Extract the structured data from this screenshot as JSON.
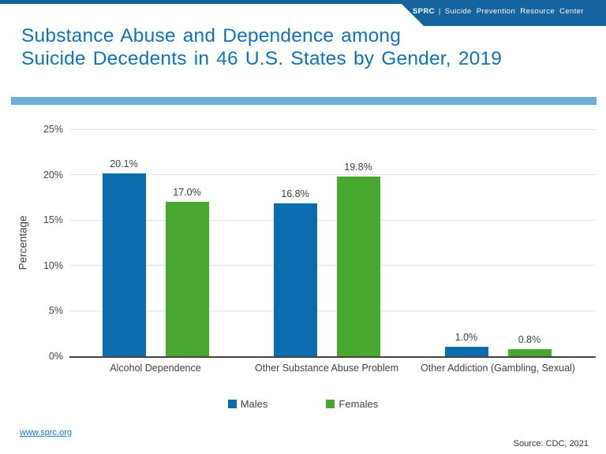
{
  "banner": {
    "brand": "SPRC",
    "separator": "|",
    "org_name": "Suicide Prevention Resource Center"
  },
  "title": {
    "line1": "Substance Abuse and Dependence among",
    "line2": "Suicide Decedents in 46 U.S. States by Gender, 2019"
  },
  "chart_data": {
    "type": "bar",
    "title": "",
    "categories": [
      "Alcohol Dependence",
      "Other Substance Abuse Problem",
      "Other Addiction (Gambling, Sexual)"
    ],
    "series": [
      {
        "name": "Males",
        "color": "#0b6cae",
        "values": [
          20.1,
          16.8,
          1.0
        ],
        "labels": [
          "20.1%",
          "16.8%",
          "1.0%"
        ]
      },
      {
        "name": "Females",
        "color": "#48a72f",
        "values": [
          17.0,
          19.8,
          0.8
        ],
        "labels": [
          "17.0%",
          "19.8%",
          "0.8%"
        ]
      }
    ],
    "xlabel": "",
    "ylabel": "Percentage",
    "ylim": [
      0,
      25
    ],
    "ytick_step": 5,
    "yticks": [
      "0%",
      "5%",
      "10%",
      "15%",
      "20%",
      "25%"
    ],
    "grid": true,
    "legend_position": "bottom"
  },
  "footer": {
    "link": "www.sprc.org",
    "source": "Source: CDC, 2021"
  },
  "colors": {
    "banner_blue": "#15639f",
    "title_blue": "#1172b5",
    "divider_blue": "#6fadda",
    "male_bar": "#0b6cae",
    "female_bar": "#48a72f",
    "axis_text": "#424242",
    "gridline": "#e3e3e3",
    "axis_line": "#424242",
    "link_blue": "#1576ba",
    "source_text": "#333333"
  }
}
